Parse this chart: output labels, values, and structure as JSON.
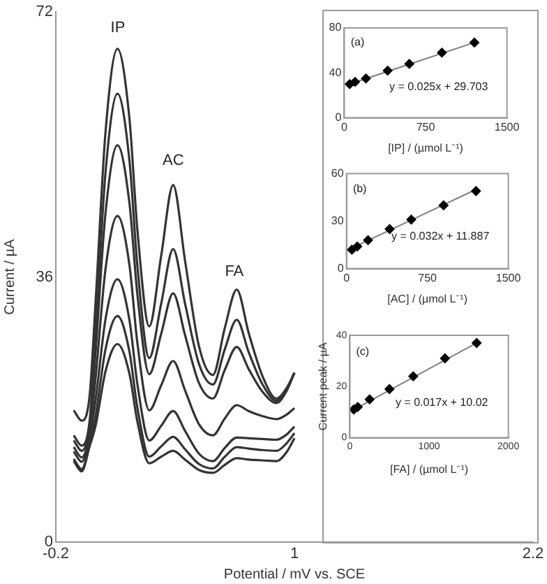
{
  "chart_data": [
    {
      "type": "line",
      "xlabel": "Potential / mV vs. SCE",
      "ylabel": "Current / µA",
      "xlim": [
        -0.2,
        2.2
      ],
      "xticks": [
        -0.2,
        1,
        2.2
      ],
      "ylim": [
        0,
        72
      ],
      "yticks": [
        0,
        36,
        72
      ],
      "x": [
        -0.11,
        -0.07,
        -0.03,
        0.0,
        0.05,
        0.11,
        0.17,
        0.21,
        0.27,
        0.33,
        0.39,
        0.45,
        0.52,
        0.59,
        0.65,
        0.71,
        0.77,
        0.84,
        0.91,
        0.96,
        1.0
      ],
      "series": [
        {
          "color": "#333333",
          "values": [
            17.9,
            16.5,
            19.9,
            32.6,
            55.7,
            67,
            57.6,
            42.5,
            29.3,
            38.9,
            48.5,
            38.2,
            26.6,
            22.7,
            29.1,
            34.3,
            28.4,
            22.5,
            19.5,
            20.9,
            23
          ]
        },
        {
          "color": "#333333",
          "values": [
            14.5,
            13.1,
            16.5,
            28.4,
            50.2,
            60.9,
            51.9,
            37.6,
            25.0,
            32.4,
            39.8,
            32.4,
            24.2,
            21.4,
            26.2,
            30.2,
            25.8,
            21.4,
            19.2,
            20.7,
            23
          ]
        },
        {
          "color": "#333333",
          "values": [
            13.8,
            12.4,
            15.8,
            25.8,
            44.7,
            53.9,
            46.1,
            33.7,
            22.8,
            28.3,
            33.8,
            28.1,
            21.6,
            19.5,
            23.4,
            26.5,
            23.5,
            20.4,
            18.9,
            20.5,
            23
          ]
        },
        {
          "color": "#333333",
          "values": [
            12.9,
            11.5,
            14.9,
            22.3,
            37.1,
            44.3,
            37.7,
            27.1,
            17.9,
            21.3,
            24.6,
            20.6,
            16.0,
            14.5,
            16.8,
            18.6,
            17.8,
            17.1,
            16.7,
            17.3,
            18.2
          ]
        },
        {
          "color": "#333333",
          "values": [
            12.3,
            10.9,
            14.3,
            19.3,
            30.3,
            35.7,
            30.2,
            21.5,
            13.8,
            15.8,
            17.8,
            15.1,
            12.0,
            11.0,
            12.8,
            14.2,
            14.1,
            14.0,
            13.9,
            14.6,
            15.7
          ]
        },
        {
          "color": "#333333",
          "values": [
            11.3,
            9.9,
            13.3,
            17.1,
            26.2,
            30.7,
            25.9,
            18.3,
            11.6,
            13.0,
            14.3,
            12.6,
            10.6,
            10.0,
            11.6,
            12.9,
            12.7,
            12.5,
            12.4,
            13.4,
            14.8
          ]
        },
        {
          "color": "#333333",
          "values": [
            11.0,
            9.6,
            13.0,
            15.8,
            23.2,
            26.9,
            22.9,
            16.4,
            10.7,
            11.6,
            12.4,
            11.2,
            9.8,
            9.4,
            10.5,
            11.4,
            11.2,
            11.1,
            11.0,
            12.2,
            14.1
          ]
        }
      ],
      "annotations": [
        "IP",
        "AC",
        "FA"
      ]
    },
    {
      "type": "scatter",
      "xlabel": "[IP] / (µmol L⁻¹)",
      "xlim": [
        0,
        1500
      ],
      "xticks": [
        0,
        750,
        1500
      ],
      "ylim": [
        0,
        80
      ],
      "yticks": [
        0,
        40,
        80
      ],
      "series": [
        {
          "marker": "diamond",
          "color": "#000000",
          "x": [
            50,
            100,
            200,
            400,
            600,
            900,
            1200
          ],
          "values": [
            30,
            32,
            35,
            42,
            48,
            58,
            67
          ]
        },
        {
          "type": "line",
          "color": "#808080",
          "x": [
            50,
            1200
          ],
          "values": [
            30,
            67
          ]
        }
      ],
      "annotations": [
        "(a)",
        "y = 0.025x + 29.703"
      ]
    },
    {
      "type": "scatter",
      "xlabel": "[AC] / (µmol L⁻¹)",
      "xlim": [
        0,
        1500
      ],
      "xticks": [
        0,
        750,
        1500
      ],
      "ylim": [
        0,
        60
      ],
      "yticks": [
        0,
        30,
        60
      ],
      "series": [
        {
          "marker": "diamond",
          "color": "#000000",
          "x": [
            50,
            100,
            200,
            400,
            600,
            900,
            1200
          ],
          "values": [
            12,
            14,
            18,
            25,
            31,
            40,
            49
          ]
        },
        {
          "type": "line",
          "color": "#808080",
          "x": [
            50,
            1200
          ],
          "values": [
            13,
            50
          ]
        }
      ],
      "annotations": [
        "(b)",
        "y = 0.032x + 11.887"
      ]
    },
    {
      "type": "scatter",
      "xlabel": "[FA] / (µmol L⁻¹)",
      "ylabel": "Current peak / µA",
      "xlim": [
        0,
        2000
      ],
      "xticks": [
        0,
        1000,
        2000
      ],
      "ylim": [
        0,
        40
      ],
      "yticks": [
        0,
        20,
        40
      ],
      "series": [
        {
          "marker": "diamond",
          "color": "#000000",
          "x": [
            50,
            100,
            250,
            500,
            800,
            1200,
            1600
          ],
          "values": [
            11,
            12,
            15,
            19,
            24,
            31,
            37
          ]
        },
        {
          "type": "line",
          "color": "#808080",
          "x": [
            50,
            1600
          ],
          "values": [
            11,
            37
          ]
        }
      ],
      "annotations": [
        "(c)",
        "y = 0.017x + 10.02"
      ]
    }
  ]
}
